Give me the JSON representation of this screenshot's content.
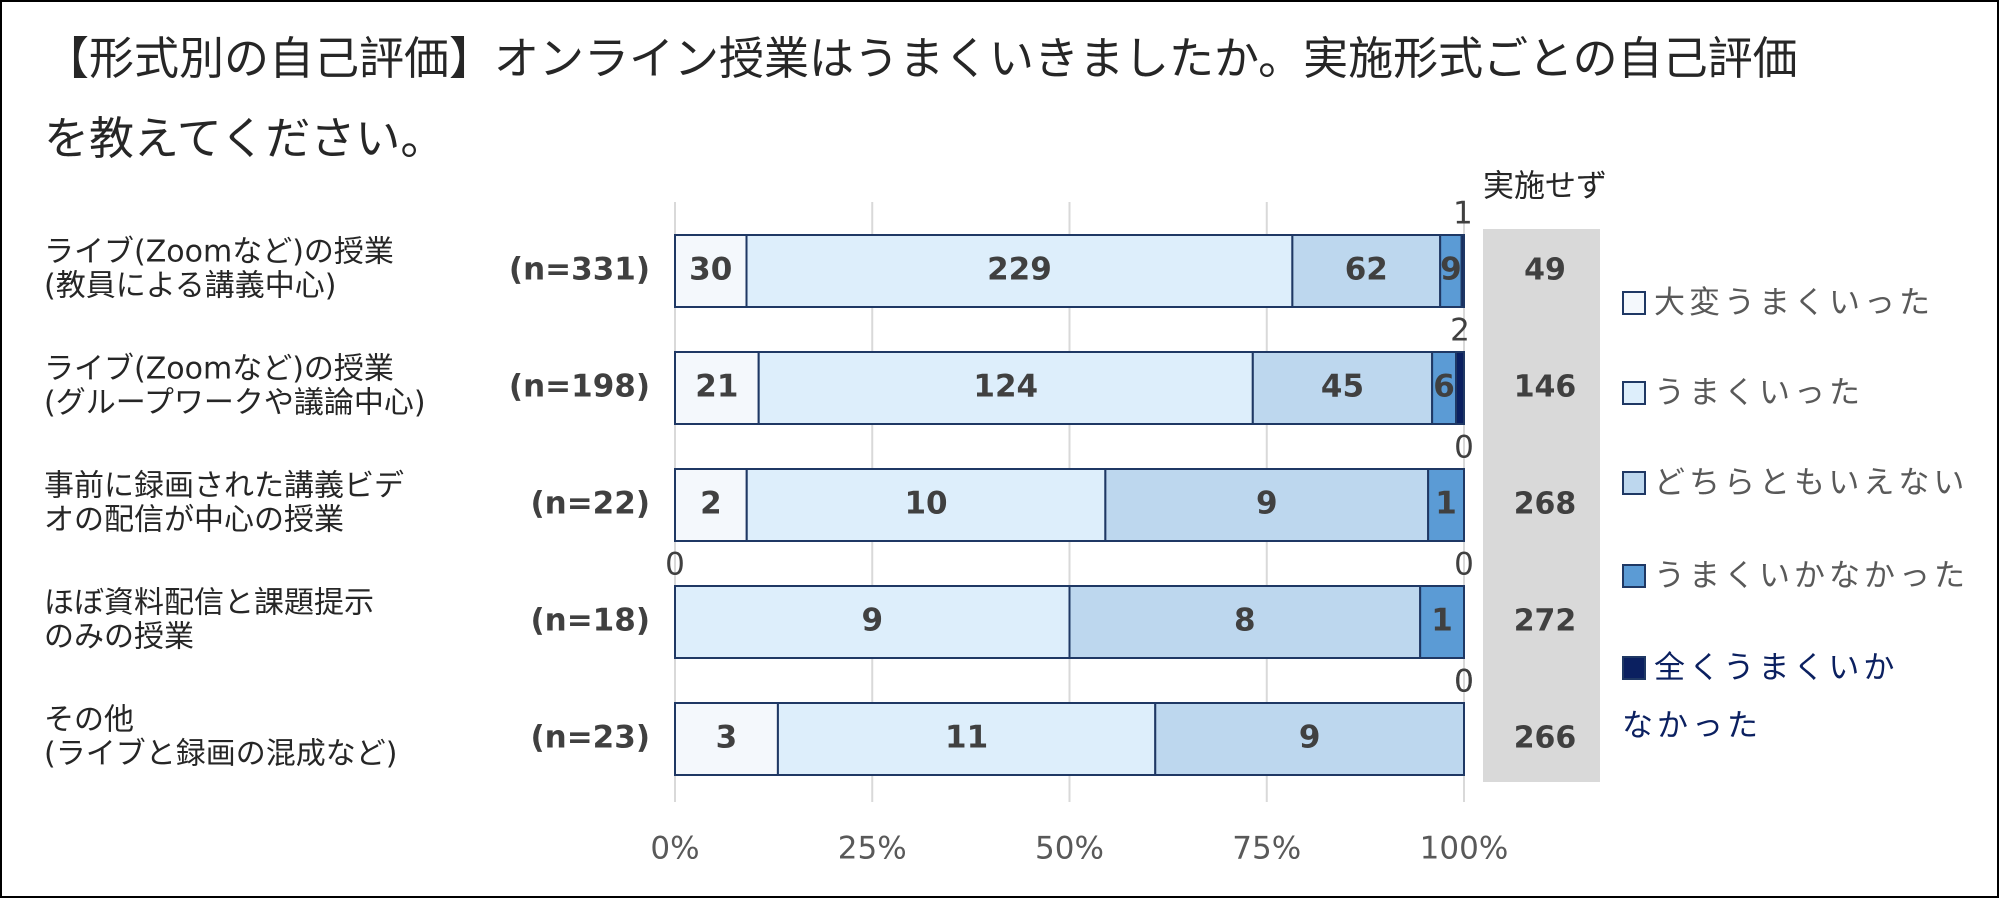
{
  "chart_data": {
    "type": "bar100h",
    "title": [
      "【形式別の自己評価】オンライン授業はうまくいきましたか。実施形式ごとの自己評価",
      "を教えてください。"
    ],
    "categories": [
      [
        "ライブ(Zoomなど)の授業",
        "(教員による講義中心)"
      ],
      [
        "ライブ(Zoomなど)の授業",
        "(グループワークや議論中心)"
      ],
      [
        "事前に録画された講義ビデ",
        "オの配信が中心の授業"
      ],
      [
        "ほぼ資料配信と課題提示",
        "のみの授業"
      ],
      [
        "その他",
        "(ライブと録画の混成など)"
      ]
    ],
    "n_labels": [
      "(n=331)",
      "(n=198)",
      "(n=22)",
      "(n=18)",
      "(n=23)"
    ],
    "series": [
      {
        "name": "大変うまくいった",
        "color": "#f4f8fc",
        "values": [
          30,
          21,
          2,
          0,
          3
        ]
      },
      {
        "name": "うまくいった",
        "color": "#ddeefb",
        "values": [
          229,
          124,
          10,
          9,
          11
        ]
      },
      {
        "name": "どちらともいえない",
        "color": "#bdd7ee",
        "values": [
          62,
          45,
          9,
          8,
          9
        ]
      },
      {
        "name": "うまくいかなかった",
        "color": "#5b9bd5",
        "values": [
          9,
          6,
          1,
          1,
          0
        ]
      },
      {
        "name": "全くうまくいかなかった",
        "color": "#0b2060",
        "values": [
          1,
          2,
          0,
          0,
          0
        ]
      }
    ],
    "not_conducted": {
      "label": "実施せず",
      "values": [
        49,
        146,
        268,
        272,
        266
      ]
    },
    "xlim": [
      0,
      100
    ],
    "xticks": [
      {
        "value": 0,
        "label": "0%"
      },
      {
        "value": 25,
        "label": "25%"
      },
      {
        "value": 50,
        "label": "50%"
      },
      {
        "value": 75,
        "label": "75%"
      },
      {
        "value": 100,
        "label": "100%"
      }
    ],
    "grid": true
  }
}
